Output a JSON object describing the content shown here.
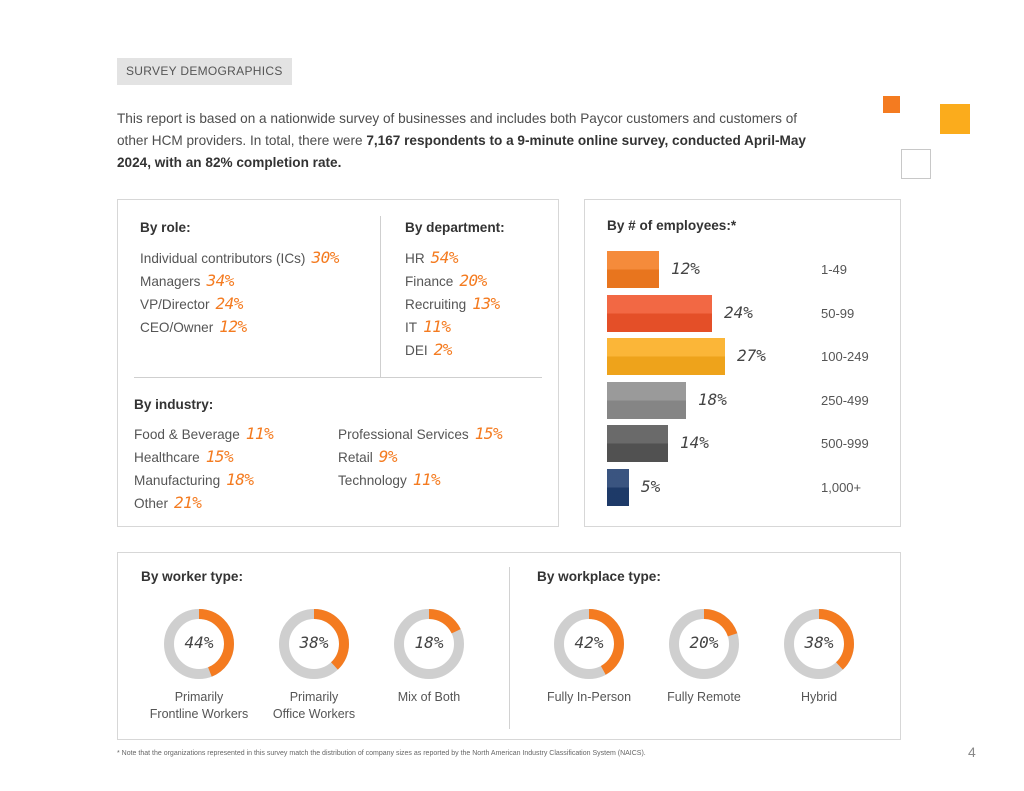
{
  "section_tag": "SURVEY DEMOGRAPHICS",
  "intro": {
    "part1": "This report is based on a nationwide survey of businesses and includes both Paycor customers and customers of other HCM providers. In total, there were ",
    "bold": "7,167 respondents to a 9-minute online survey, conducted April-May 2024, with an 82% completion rate."
  },
  "colors": {
    "orange": "#f47b20",
    "red_orange": "#f0532a",
    "amber": "#fbac1c",
    "gray": "#8c8c8c",
    "dark_gray": "#555555",
    "navy": "#1f3d6e",
    "donut_track": "#cfcfcf"
  },
  "by_role": {
    "heading": "By role:",
    "items": [
      {
        "label": "Individual contributors (ICs)",
        "value": "30%"
      },
      {
        "label": "Managers",
        "value": "34%"
      },
      {
        "label": "VP/Director",
        "value": "24%"
      },
      {
        "label": "CEO/Owner",
        "value": "12%"
      }
    ]
  },
  "by_department": {
    "heading": "By department:",
    "items": [
      {
        "label": "HR",
        "value": "54%"
      },
      {
        "label": "Finance",
        "value": "20%"
      },
      {
        "label": "Recruiting",
        "value": "13%"
      },
      {
        "label": "IT",
        "value": "11%"
      },
      {
        "label": "DEI",
        "value": "2%"
      }
    ]
  },
  "by_industry": {
    "heading": "By industry:",
    "left": [
      {
        "label": "Food & Beverage",
        "value": "11%"
      },
      {
        "label": "Healthcare",
        "value": "15%"
      },
      {
        "label": "Manufacturing",
        "value": "18%"
      },
      {
        "label": "Other",
        "value": "21%"
      }
    ],
    "right": [
      {
        "label": "Professional Services",
        "value": "15%"
      },
      {
        "label": "Retail",
        "value": "9%"
      },
      {
        "label": "Technology",
        "value": "11%"
      }
    ]
  },
  "by_employees": {
    "heading": "By # of employees:*",
    "items": [
      {
        "label": "1-49",
        "value": "12%",
        "pct": 12,
        "color": "#f47b20"
      },
      {
        "label": "50-99",
        "value": "24%",
        "pct": 24,
        "color": "#f0532a"
      },
      {
        "label": "100-249",
        "value": "27%",
        "pct": 27,
        "color": "#fbac1c"
      },
      {
        "label": "250-499",
        "value": "18%",
        "pct": 18,
        "color": "#8c8c8c"
      },
      {
        "label": "500-999",
        "value": "14%",
        "pct": 14,
        "color": "#555555"
      },
      {
        "label": "1,000+",
        "value": "5%",
        "pct": 5,
        "color": "#1f3d6e"
      }
    ]
  },
  "by_worker_type": {
    "heading": "By worker type:",
    "items": [
      {
        "value": "44%",
        "pct": 44,
        "line1": "Primarily",
        "line2": "Frontline Workers"
      },
      {
        "value": "38%",
        "pct": 38,
        "line1": "Primarily",
        "line2": "Office Workers"
      },
      {
        "value": "18%",
        "pct": 18,
        "line1": "Mix of Both",
        "line2": ""
      }
    ]
  },
  "by_workplace_type": {
    "heading": "By workplace type:",
    "items": [
      {
        "value": "42%",
        "pct": 42,
        "line1": "Fully In-Person",
        "line2": ""
      },
      {
        "value": "20%",
        "pct": 20,
        "line1": "Fully Remote",
        "line2": ""
      },
      {
        "value": "38%",
        "pct": 38,
        "line1": "Hybrid",
        "line2": ""
      }
    ]
  },
  "footnote": "* Note that the organizations represented in this survey match the distribution of company sizes as reported by the North American Industry Classification System (NAICS).",
  "page_number": "4"
}
